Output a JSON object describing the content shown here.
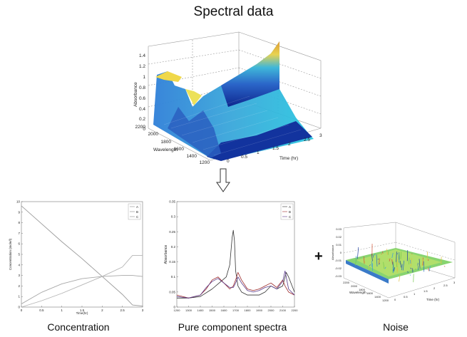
{
  "titles": {
    "main": "Spectral data",
    "concentration": "Concentration",
    "pure": "Pure component spectra",
    "noise": "Noise"
  },
  "plus_sign": "+",
  "surface_plot": {
    "z_label": "Absorbance",
    "x_label": "Time (hr)",
    "y_label": "Wavelength",
    "z_ticks": [
      "0",
      "0.2",
      "0.4",
      "0.6",
      "0.8",
      "1",
      "1.2",
      "1.4"
    ],
    "x_ticks": [
      "0",
      "0.5",
      "1",
      "1.5",
      "2",
      "2.5",
      "3"
    ],
    "y_ticks": [
      "2200",
      "2000",
      "1800",
      "1600",
      "1400",
      "1200"
    ]
  },
  "concentration_plot": {
    "ylabel": "Concentration (mole/l)",
    "xlabel": "Time(hr)",
    "y_ticks": [
      "10",
      "9",
      "8",
      "7",
      "6",
      "5",
      "4",
      "3",
      "2",
      "1",
      "0"
    ],
    "x_ticks": [
      "0",
      "0.5",
      "1",
      "1.5",
      "2",
      "2.5",
      "3"
    ],
    "legend": [
      "A",
      "B",
      "C"
    ]
  },
  "pure_plot": {
    "ylabel": "Absorbance",
    "y_ticks": [
      "0.35",
      "0.3",
      "0.25",
      "0.2",
      "0.15",
      "0.1",
      "0.05",
      "0"
    ],
    "x_ticks": [
      "1200",
      "1300",
      "1400",
      "1500",
      "1600",
      "1700",
      "1800",
      "1900",
      "2000",
      "2100",
      "2200"
    ],
    "legend": [
      "A",
      "B",
      "C"
    ]
  },
  "noise_plot": {
    "z_label": "Absorbance",
    "x_label": "Time (hr)",
    "y_label": "Wavelength",
    "z_ticks": [
      "0.03",
      "0.02",
      "0.01",
      "0",
      "-0.01",
      "-0.02",
      "-0.03"
    ],
    "x_ticks": [
      "0",
      "0.5",
      "1",
      "1.5",
      "2",
      "2.5",
      "3"
    ],
    "y_ticks": [
      "2200",
      "2000",
      "1800",
      "1600",
      "1400",
      "1200"
    ]
  },
  "chart_data": [
    {
      "type": "line",
      "title": "Concentration",
      "xlabel": "Time(hr)",
      "ylabel": "Concentration (mole/l)",
      "xlim": [
        0,
        3
      ],
      "ylim": [
        0,
        10
      ],
      "series": [
        {
          "name": "A",
          "x": [
            0,
            0.5,
            1,
            1.5,
            2,
            2.5,
            2.75,
            3
          ],
          "values": [
            9.6,
            7.9,
            6.2,
            4.6,
            2.9,
            1.2,
            0.2,
            0.1
          ]
        },
        {
          "name": "B",
          "x": [
            0,
            0.5,
            1,
            1.5,
            2,
            2.5,
            2.75,
            3
          ],
          "values": [
            0.3,
            1.4,
            2.2,
            2.7,
            2.9,
            3.0,
            3.0,
            2.9
          ]
        },
        {
          "name": "C",
          "x": [
            0,
            0.5,
            1,
            1.5,
            2,
            2.5,
            2.75,
            3
          ],
          "values": [
            0,
            0.6,
            1.3,
            2.1,
            2.9,
            3.8,
            4.9,
            4.9
          ]
        }
      ]
    },
    {
      "type": "line",
      "title": "Pure component spectra",
      "xlabel": "",
      "ylabel": "Absorbance",
      "xlim": [
        1200,
        2200
      ],
      "ylim": [
        0,
        0.35
      ],
      "series": [
        {
          "name": "A",
          "x": [
            1200,
            1300,
            1400,
            1500,
            1560,
            1620,
            1650,
            1670,
            1680,
            1690,
            1700,
            1720,
            1750,
            1800,
            1900,
            1950,
            2000,
            2050,
            2100,
            2130,
            2150,
            2200
          ],
          "values": [
            0.03,
            0.03,
            0.035,
            0.06,
            0.08,
            0.1,
            0.14,
            0.23,
            0.255,
            0.22,
            0.12,
            0.07,
            0.05,
            0.04,
            0.04,
            0.05,
            0.07,
            0.06,
            0.07,
            0.115,
            0.1,
            0.05
          ]
        },
        {
          "name": "B",
          "x": [
            1200,
            1300,
            1400,
            1450,
            1500,
            1550,
            1600,
            1650,
            1680,
            1700,
            1720,
            1750,
            1800,
            1850,
            1900,
            1950,
            2000,
            2050,
            2100,
            2120,
            2150,
            2200
          ],
          "values": [
            0.04,
            0.03,
            0.04,
            0.06,
            0.09,
            0.1,
            0.08,
            0.06,
            0.07,
            0.09,
            0.115,
            0.09,
            0.06,
            0.055,
            0.06,
            0.07,
            0.08,
            0.065,
            0.09,
            0.07,
            0.05,
            0.04
          ]
        },
        {
          "name": "C",
          "x": [
            1200,
            1300,
            1400,
            1450,
            1500,
            1550,
            1600,
            1650,
            1680,
            1700,
            1720,
            1750,
            1800,
            1850,
            1900,
            1950,
            2000,
            2050,
            2100,
            2120,
            2150,
            2200
          ],
          "values": [
            0.035,
            0.03,
            0.04,
            0.065,
            0.085,
            0.095,
            0.08,
            0.065,
            0.065,
            0.08,
            0.1,
            0.08,
            0.055,
            0.05,
            0.055,
            0.065,
            0.07,
            0.06,
            0.085,
            0.12,
            0.06,
            0.04
          ]
        }
      ]
    }
  ]
}
